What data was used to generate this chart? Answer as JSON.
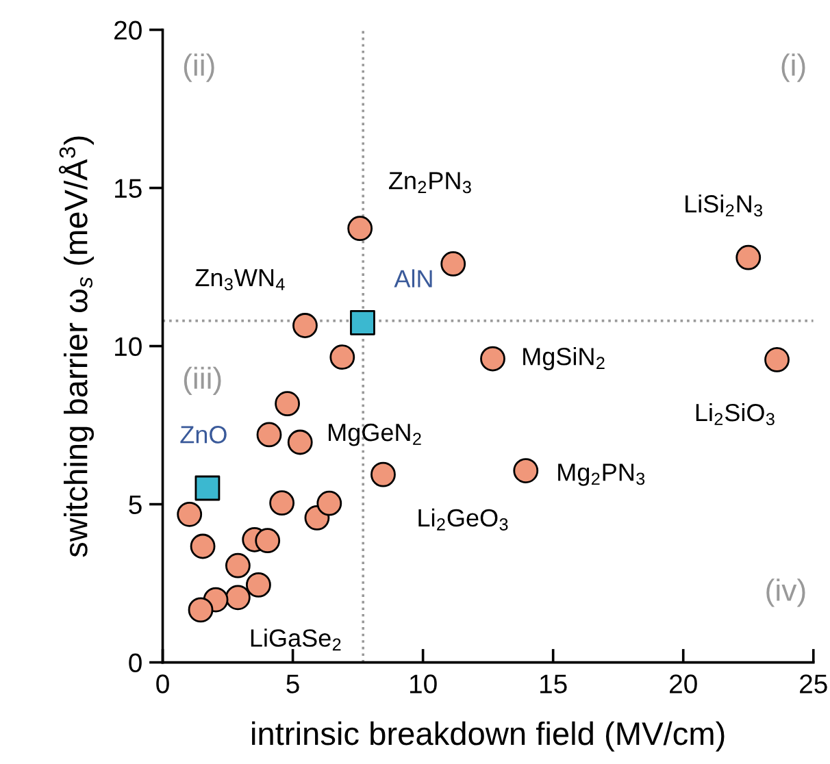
{
  "chart_data": {
    "type": "scatter",
    "xlabel": "intrinsic breakdown field (MV/cm)",
    "ylabel": "switching barrier ω$_{s}$ (meV/Å$^{3}$)",
    "xlim": [
      0,
      25
    ],
    "ylim": [
      0,
      20
    ],
    "xticks": [
      0,
      5,
      10,
      15,
      20,
      25
    ],
    "yticks": [
      0,
      5,
      10,
      15,
      20
    ],
    "grid": false,
    "legend": false,
    "series": [
      {
        "color": "#f0977a",
        "marker": "circle",
        "x": [
          7.58,
          11.16,
          5.47,
          6.9,
          12.68,
          22.5,
          23.6,
          13.95,
          8.47,
          4.79,
          4.09,
          5.28,
          4.58,
          5.93,
          6.4,
          1.03,
          1.54,
          3.53,
          4.03,
          2.89,
          3.68,
          2.89,
          2.04,
          1.46
        ],
        "values": [
          13.72,
          12.6,
          10.65,
          9.65,
          9.6,
          12.8,
          9.57,
          6.06,
          5.94,
          8.18,
          7.2,
          6.96,
          5.04,
          4.57,
          5.03,
          4.68,
          3.67,
          3.88,
          3.85,
          3.06,
          2.45,
          2.05,
          1.98,
          1.66
        ]
      },
      {
        "name": "ZnO",
        "color": "#3bb8d0",
        "marker": "square",
        "x": [
          1.72
        ],
        "values": [
          5.51
        ]
      },
      {
        "name": "AlN",
        "color": "#3bb8d0",
        "marker": "square",
        "x": [
          7.68
        ],
        "values": [
          10.74
        ]
      }
    ],
    "ref_lines": [
      {
        "axis": "x",
        "value": 7.7,
        "color": "#999999",
        "line_style": "dotted"
      },
      {
        "axis": "y",
        "value": 10.8,
        "color": "#999999",
        "line_style": "dotted"
      }
    ],
    "annotations": [
      {
        "text": "Zn$_{2}$PN$_{3}$",
        "x": 7.58,
        "y": 13.72
      },
      {
        "text": "Zn$_{3}$WN$_{4}$",
        "x": 5.47,
        "y": 10.65
      },
      {
        "text": "MgSiN$_{2}$",
        "x": 12.68,
        "y": 9.6
      },
      {
        "text": "LiSi$_{2}$N$_{3}$",
        "x": 22.5,
        "y": 12.8
      },
      {
        "text": "Li$_{2}$SiO$_{3}$",
        "x": 23.6,
        "y": 9.57
      },
      {
        "text": "Mg$_{2}$PN$_{3}$",
        "x": 13.95,
        "y": 6.06
      },
      {
        "text": "Li$_{2}$GeO$_{3}$",
        "x": 8.47,
        "y": 5.94
      },
      {
        "text": "MgGeN$_{2}$",
        "x": 5.28,
        "y": 6.96
      },
      {
        "text": "LiGaSe$_{2}$",
        "x": 1.46,
        "y": 1.66
      },
      "(i)",
      "(ii)",
      "(iii)",
      "(iv)"
    ]
  }
}
